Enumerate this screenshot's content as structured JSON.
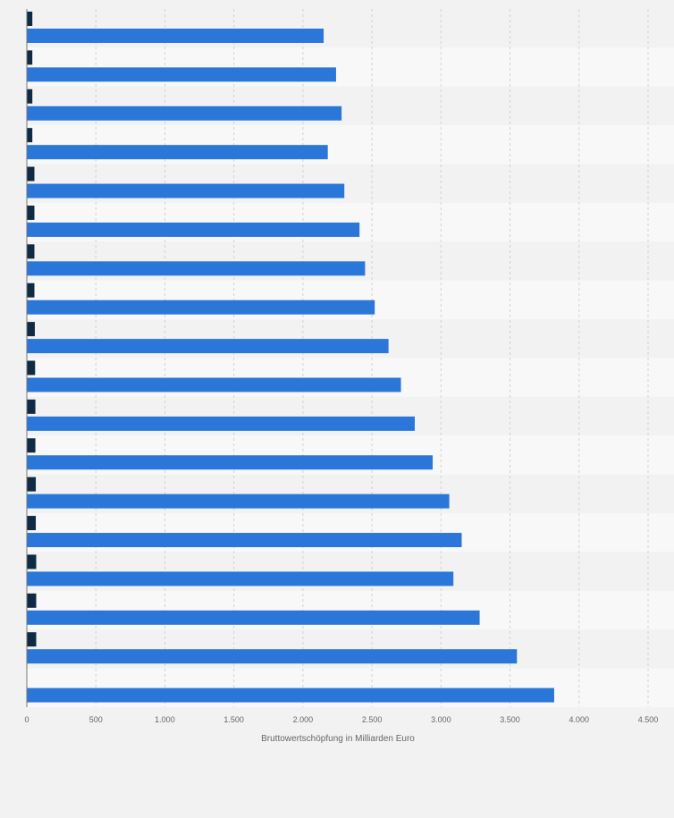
{
  "chart_data": {
    "type": "bar",
    "orientation": "horizontal",
    "categories": [
      "",
      "",
      "",
      "",
      "",
      "",
      "",
      "",
      "",
      "",
      "",
      "",
      "",
      "",
      "",
      "",
      "",
      ""
    ],
    "series": [
      {
        "values": [
          40,
          40,
          40,
          40,
          55,
          55,
          55,
          55,
          58,
          60,
          62,
          62,
          65,
          65,
          68,
          68,
          68,
          null
        ],
        "color": "#0f2a44"
      },
      {
        "values": [
          2150,
          2240,
          2280,
          2180,
          2300,
          2410,
          2450,
          2520,
          2620,
          2710,
          2810,
          2940,
          3060,
          3150,
          3090,
          3280,
          3550,
          3820
        ],
        "color": "#2b77d9"
      }
    ],
    "xlabel": "Bruttowertschöpfung in Milliarden Euro",
    "xlim": [
      0,
      4500
    ],
    "xticks": [
      0,
      500,
      1000,
      1500,
      2000,
      2500,
      3000,
      3500,
      4000,
      4500
    ],
    "xtick_labels": [
      "0",
      "500",
      "1.000",
      "1.500",
      "2.000",
      "2.500",
      "3.000",
      "3.500",
      "4.000",
      "4.500"
    ],
    "grid": true
  }
}
